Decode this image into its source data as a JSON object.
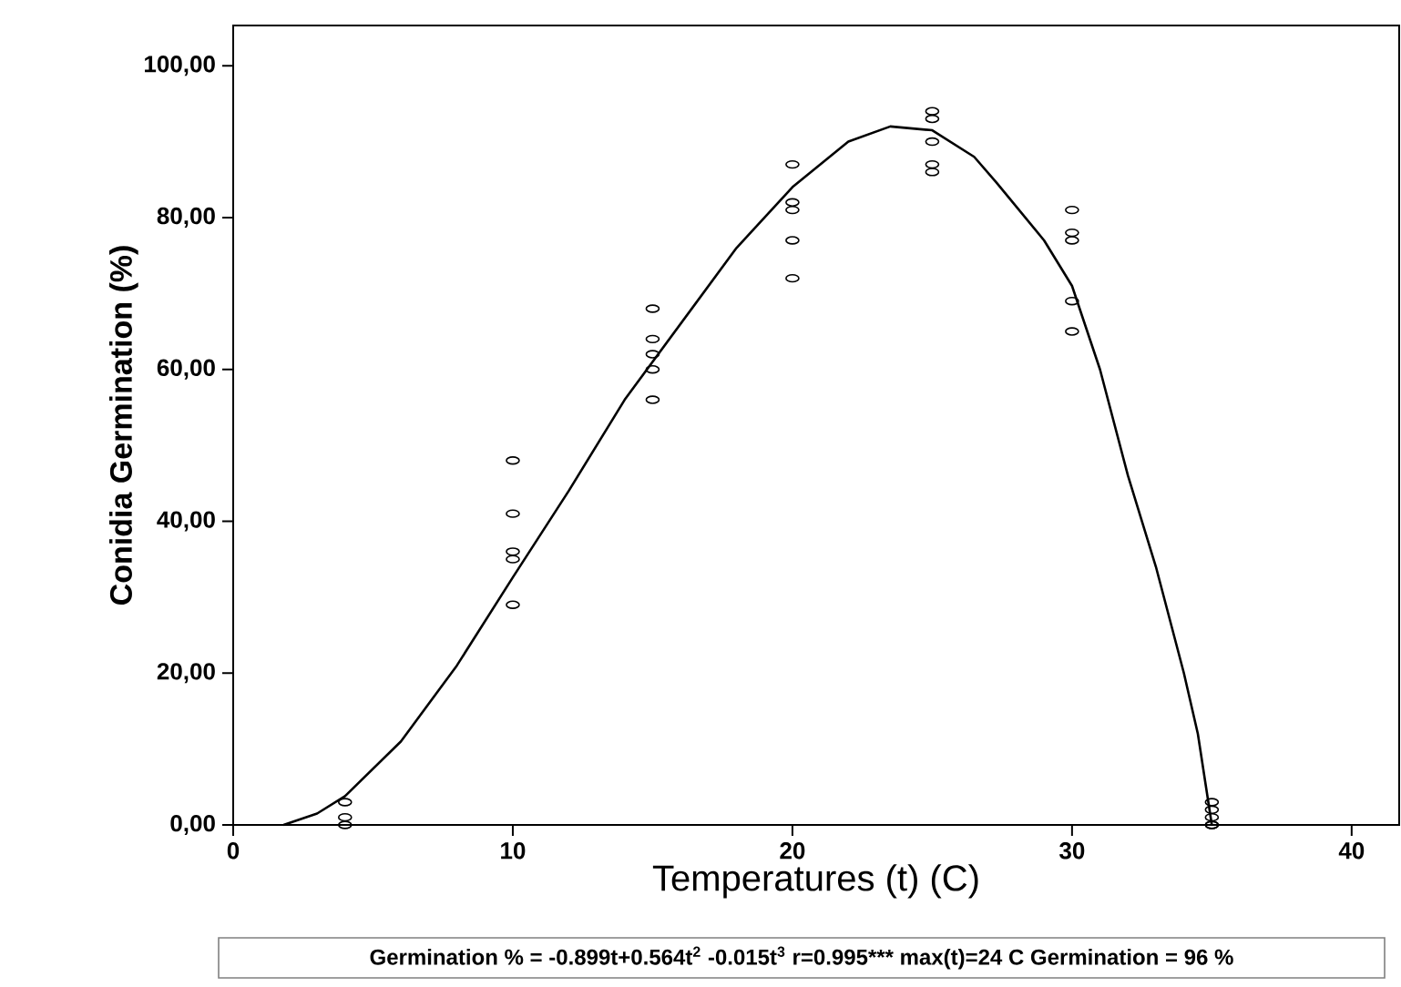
{
  "chart_data": {
    "type": "scatter",
    "xlabel": "Temperatures (t) (C)",
    "ylabel": "Conidia Germination (%)",
    "xlim": [
      0,
      41.7
    ],
    "ylim": [
      0,
      105.3
    ],
    "xticks": [
      0,
      10,
      20,
      30,
      40
    ],
    "yticks": [
      {
        "value": 0,
        "label": "0,00"
      },
      {
        "value": 20,
        "label": "20,00"
      },
      {
        "value": 40,
        "label": "40,00"
      },
      {
        "value": 60,
        "label": "60,00"
      },
      {
        "value": 80,
        "label": "80,00"
      },
      {
        "value": 100,
        "label": "100,00"
      }
    ],
    "series": [
      {
        "color": "#000000",
        "marker": "circle",
        "x": [
          4,
          4,
          4,
          10,
          10,
          10,
          10,
          10,
          15,
          15,
          15,
          15,
          15,
          20,
          20,
          20,
          20,
          20,
          25,
          25,
          25,
          25,
          25,
          30,
          30,
          30,
          30,
          30,
          35,
          35,
          35,
          35,
          35
        ],
        "values": [
          3,
          1,
          0,
          48,
          41,
          36,
          35,
          29,
          68,
          64,
          62,
          60,
          56,
          87,
          82,
          81,
          77,
          72,
          94,
          93,
          90,
          87,
          86,
          81,
          78,
          77,
          69,
          65,
          3,
          2,
          1,
          0,
          0
        ]
      },
      {
        "type": "line",
        "color": "#000000",
        "marker": "none",
        "x": [
          1.8,
          3,
          4,
          6,
          8,
          10,
          12,
          14,
          16,
          18,
          20,
          22,
          23.5,
          25,
          26.5,
          27.3,
          29,
          30,
          31,
          32,
          33,
          34,
          34.5,
          35
        ],
        "values": [
          0,
          1.5,
          3.8,
          11,
          21,
          32.6,
          44,
          56,
          66,
          76,
          84,
          90,
          92,
          91.5,
          88,
          84.6,
          77,
          71,
          60,
          46,
          34,
          20,
          12,
          0
        ]
      }
    ],
    "annotations": [
      "Germination % = -0.899t+0.564t$^{2}$ -0.015t$^{3}$ r=0.995*** max(t)=24 C Germination = 96 %"
    ]
  }
}
